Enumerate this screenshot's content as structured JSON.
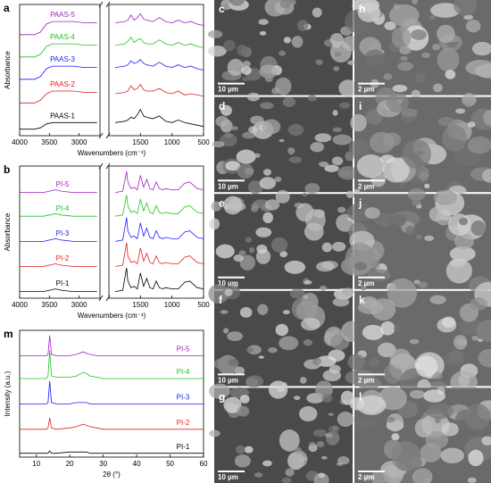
{
  "chart_data": [
    {
      "type": "line",
      "panel": "a",
      "xlabel": "Wavenumbers (cm⁻¹)",
      "ylabel": "Absorbance",
      "xsegments": [
        [
          4000,
          2650
        ],
        [
          2000,
          500
        ]
      ],
      "ylim": [
        0,
        100
      ],
      "xticks": [
        4000,
        3500,
        3000,
        1500,
        1000,
        500
      ],
      "x": [
        4000,
        3750,
        3650,
        3550,
        3450,
        3300,
        3100,
        2900,
        2700,
        1900,
        1750,
        1700,
        1650,
        1600,
        1550,
        1500,
        1450,
        1400,
        1300,
        1200,
        1100,
        1000,
        900,
        800,
        700,
        600,
        500
      ],
      "series": [
        {
          "name": "PAAS-1",
          "color": "#000000",
          "values": [
            5,
            5,
            6,
            9,
            10,
            10,
            10,
            10,
            10,
            10,
            11,
            12,
            14,
            13,
            16,
            20,
            15,
            14,
            13,
            15,
            11,
            10,
            12,
            10,
            9,
            8,
            7
          ]
        },
        {
          "name": "PAAS-2",
          "color": "#e02020",
          "values": [
            25,
            25,
            27,
            32,
            34,
            34,
            34,
            33,
            33,
            32,
            33,
            34,
            38,
            35,
            36,
            39,
            35,
            34,
            34,
            36,
            33,
            32,
            34,
            31,
            32,
            31,
            30
          ]
        },
        {
          "name": "PAAS-3",
          "color": "#1a1aff",
          "values": [
            43,
            43,
            45,
            51,
            53,
            53,
            53,
            52,
            52,
            52,
            53,
            54,
            57,
            55,
            56,
            58,
            55,
            54,
            53,
            56,
            53,
            52,
            54,
            52,
            53,
            51,
            50
          ]
        },
        {
          "name": "PAAS-4",
          "color": "#22c022",
          "values": [
            60,
            60,
            62,
            68,
            70,
            70,
            70,
            69,
            69,
            69,
            70,
            72,
            75,
            71,
            73,
            74,
            71,
            70,
            70,
            73,
            70,
            69,
            71,
            69,
            70,
            68,
            67
          ]
        },
        {
          "name": "PAAS-5",
          "color": "#a020c0",
          "values": [
            77,
            77,
            79,
            85,
            87,
            87,
            87,
            86,
            86,
            86,
            87,
            88,
            92,
            88,
            90,
            93,
            89,
            88,
            87,
            90,
            87,
            86,
            88,
            86,
            87,
            85,
            84
          ]
        }
      ]
    },
    {
      "type": "line",
      "panel": "b",
      "xlabel": "Wavenumbers (cm⁻¹)",
      "ylabel": "Absorbance",
      "xsegments": [
        [
          4000,
          2650
        ],
        [
          2000,
          500
        ]
      ],
      "ylim": [
        0,
        100
      ],
      "xticks": [
        4000,
        3500,
        3000,
        1500,
        1000,
        500
      ],
      "x": [
        4000,
        3600,
        3500,
        3400,
        3300,
        3100,
        2900,
        2700,
        1900,
        1780,
        1720,
        1700,
        1650,
        1600,
        1550,
        1500,
        1450,
        1400,
        1350,
        1300,
        1250,
        1200,
        1150,
        1100,
        1000,
        900,
        800,
        720,
        600,
        500
      ],
      "series": [
        {
          "name": "PI-1",
          "color": "#000000",
          "values": [
            5,
            5,
            6,
            7,
            6,
            5,
            5,
            5,
            5,
            6,
            23,
            13,
            8,
            9,
            7,
            19,
            9,
            15,
            8,
            7,
            13,
            8,
            7,
            8,
            7,
            7,
            12,
            13,
            8,
            7
          ]
        },
        {
          "name": "PI-2",
          "color": "#e02020",
          "values": [
            24,
            24,
            25,
            26,
            25,
            24,
            24,
            24,
            24,
            25,
            42,
            32,
            27,
            28,
            26,
            38,
            28,
            34,
            27,
            26,
            32,
            27,
            26,
            27,
            26,
            26,
            31,
            32,
            27,
            26
          ]
        },
        {
          "name": "PI-3",
          "color": "#1a1aff",
          "values": [
            43,
            43,
            44,
            45,
            44,
            43,
            43,
            43,
            43,
            44,
            61,
            51,
            46,
            47,
            45,
            57,
            47,
            53,
            46,
            45,
            51,
            46,
            45,
            46,
            45,
            45,
            50,
            51,
            46,
            45
          ]
        },
        {
          "name": "PI-4",
          "color": "#22c022",
          "values": [
            62,
            62,
            63,
            64,
            63,
            62,
            62,
            62,
            62,
            63,
            78,
            70,
            65,
            66,
            64,
            75,
            66,
            72,
            65,
            64,
            70,
            65,
            64,
            65,
            64,
            64,
            69,
            70,
            65,
            64
          ]
        },
        {
          "name": "PI-5",
          "color": "#a020c0",
          "values": [
            80,
            80,
            81,
            82,
            81,
            80,
            80,
            80,
            80,
            81,
            96,
            88,
            83,
            84,
            82,
            93,
            84,
            90,
            83,
            82,
            88,
            83,
            82,
            83,
            82,
            82,
            87,
            88,
            83,
            82
          ]
        }
      ]
    },
    {
      "type": "line",
      "panel": "m",
      "xlabel": "2θ (°)",
      "ylabel": "Intensity (a.u.)",
      "xlim": [
        5,
        60
      ],
      "ylim": [
        0,
        100
      ],
      "xticks": [
        10,
        20,
        30,
        40,
        50,
        60
      ],
      "x": [
        5,
        10,
        13,
        13.5,
        14,
        14.5,
        16,
        20,
        22,
        24,
        25,
        26,
        28,
        30,
        35,
        40,
        50,
        60
      ],
      "series": [
        {
          "name": "PI-1",
          "color": "#000000",
          "values": [
            3,
            3,
            3,
            3,
            5,
            3,
            3,
            4,
            4,
            4,
            4,
            3,
            3,
            3,
            3,
            3,
            3,
            3
          ]
        },
        {
          "name": "PI-2",
          "color": "#e02020",
          "values": [
            22,
            22,
            22,
            23,
            31,
            23,
            22,
            23,
            24,
            26,
            25,
            24,
            23,
            22,
            22,
            22,
            22,
            22
          ]
        },
        {
          "name": "PI-3",
          "color": "#1a1aff",
          "values": [
            42,
            42,
            42,
            43,
            60,
            43,
            42,
            42,
            43,
            43,
            43,
            42,
            42,
            42,
            42,
            42,
            42,
            42
          ]
        },
        {
          "name": "PI-4",
          "color": "#22c022",
          "values": [
            62,
            62,
            62,
            64,
            84,
            64,
            63,
            63,
            64,
            67,
            66,
            64,
            63,
            62,
            62,
            62,
            62,
            62
          ]
        },
        {
          "name": "PI-5",
          "color": "#a020c0",
          "values": [
            80,
            80,
            80,
            81,
            96,
            81,
            80,
            80,
            81,
            83,
            82,
            81,
            80,
            80,
            80,
            80,
            80,
            80
          ]
        }
      ]
    }
  ],
  "images": [
    {
      "label": "c",
      "scale": "10 µm"
    },
    {
      "label": "d",
      "scale": "10 µm"
    },
    {
      "label": "e",
      "scale": "10 µm"
    },
    {
      "label": "f",
      "scale": "10 µm"
    },
    {
      "label": "g",
      "scale": "10 µm"
    },
    {
      "label": "h",
      "scale": "2 µm"
    },
    {
      "label": "i",
      "scale": "2 µm"
    },
    {
      "label": "j",
      "scale": "2 µm"
    },
    {
      "label": "k",
      "scale": "2 µm"
    },
    {
      "label": "l",
      "scale": "2 µm"
    }
  ]
}
